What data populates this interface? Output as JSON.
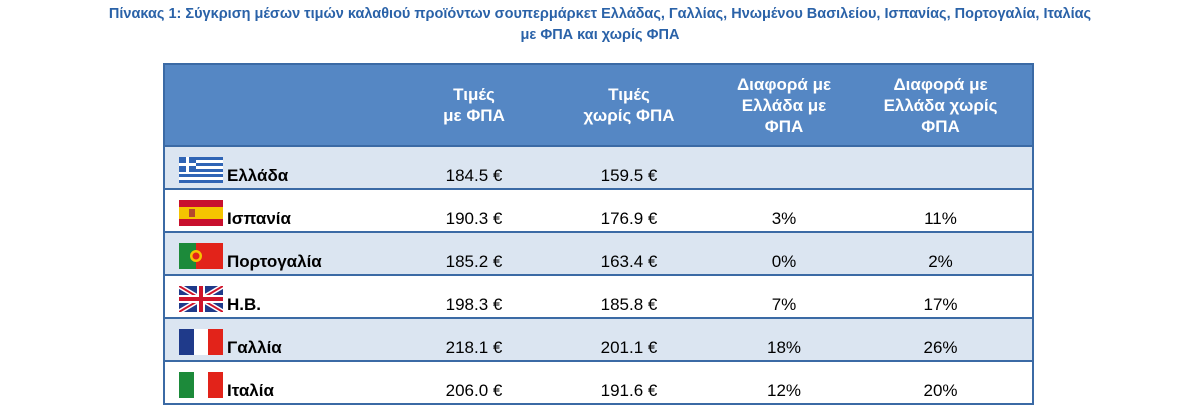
{
  "title": [
    "Πίνακας 1: Σύγκριση μέσων τιμών καλαθιού προϊόντων σουπερμάρκετ Ελλάδας, Γαλλίας, Ηνωμένου Βασιλείου, Ισπανίας, Πορτογαλία, Ιταλίας",
    "με ΦΠΑ και χωρίς ΦΠΑ"
  ],
  "table": {
    "headers": [
      [
        "Τιμές",
        "με ΦΠΑ"
      ],
      [
        "Τιμές",
        "χωρίς ΦΠΑ"
      ],
      [
        "Διαφορά με",
        "Ελλάδα με",
        "ΦΠΑ"
      ],
      [
        "Διαφορά με",
        "Ελλάδα χωρίς",
        "ΦΠΑ"
      ]
    ],
    "rows": [
      [
        "Ελλάδα",
        "184.5 €",
        "159.5 €"
      ],
      [
        "Ισπανία",
        "190.3 €",
        "176.9 €",
        "3%",
        "11%"
      ],
      [
        "Πορτογαλία",
        "185.2 €",
        "163.4 €",
        "0%",
        "2%"
      ],
      [
        "Η.Β.",
        "198.3 €",
        "185.8 €",
        "7%",
        "17%"
      ],
      [
        "Γαλλία",
        "218.1 €",
        "201.1 €",
        "18%",
        "26%"
      ],
      [
        "Ιταλία",
        "206.0 €",
        "191.6 €",
        "12%",
        "20%"
      ]
    ]
  }
}
